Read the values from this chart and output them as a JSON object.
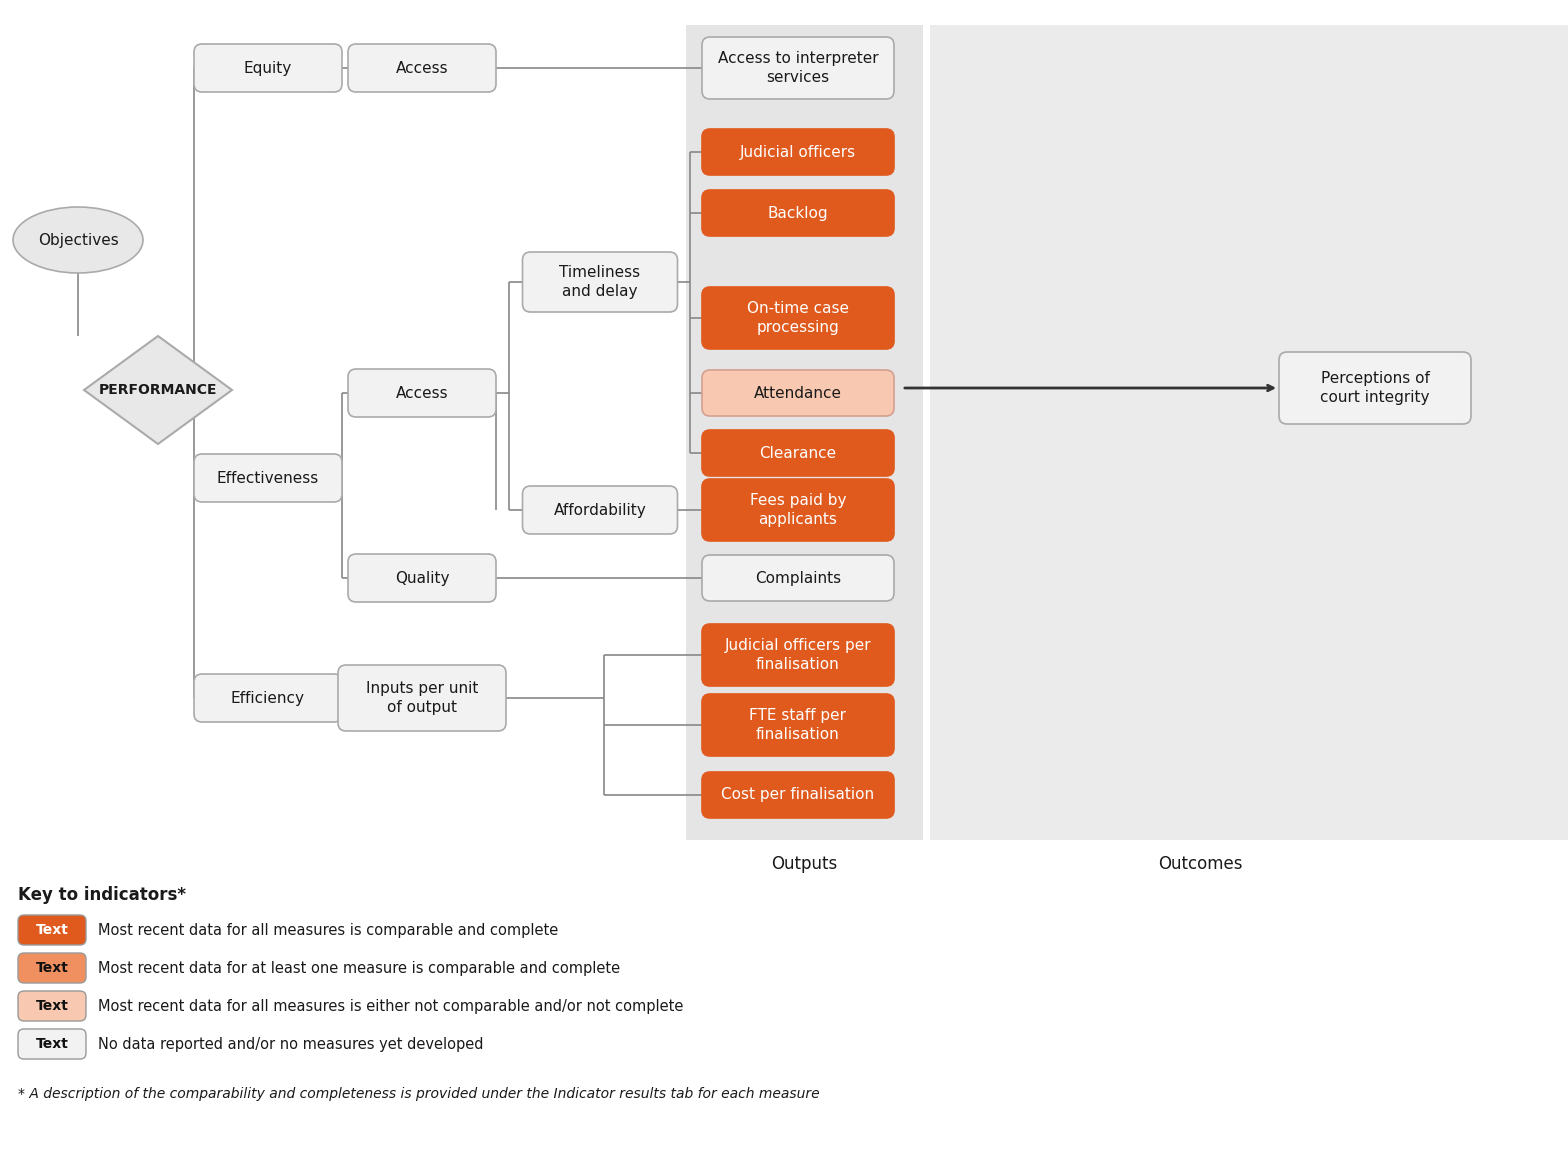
{
  "bg_color": "#ffffff",
  "outputs_bg": "#e5e5e5",
  "outcomes_bg": "#ebebeb",
  "orange_dark": "#e05a1e",
  "orange_light": "#f8c8b0",
  "box_fill": "#f2f2f2",
  "box_border": "#aaaaaa",
  "text_dark": "#1a1a1a",
  "text_white": "#ffffff",
  "arrow_color": "#444444",
  "key_items": [
    {
      "color": "#e05a1e",
      "text_color": "#ffffff",
      "label": "Most recent data for all measures is comparable and complete"
    },
    {
      "color": "#f09060",
      "text_color": "#111111",
      "label": "Most recent data for at least one measure is comparable and complete"
    },
    {
      "color": "#f8c8b0",
      "text_color": "#111111",
      "label": "Most recent data for all measures is either not comparable and/or not complete"
    },
    {
      "color": "#f2f2f2",
      "text_color": "#111111",
      "label": "No data reported and/or no measures yet developed"
    }
  ],
  "footnote": "* A description of the comparability and completeness is provided under the Indicator results tab for each measure"
}
